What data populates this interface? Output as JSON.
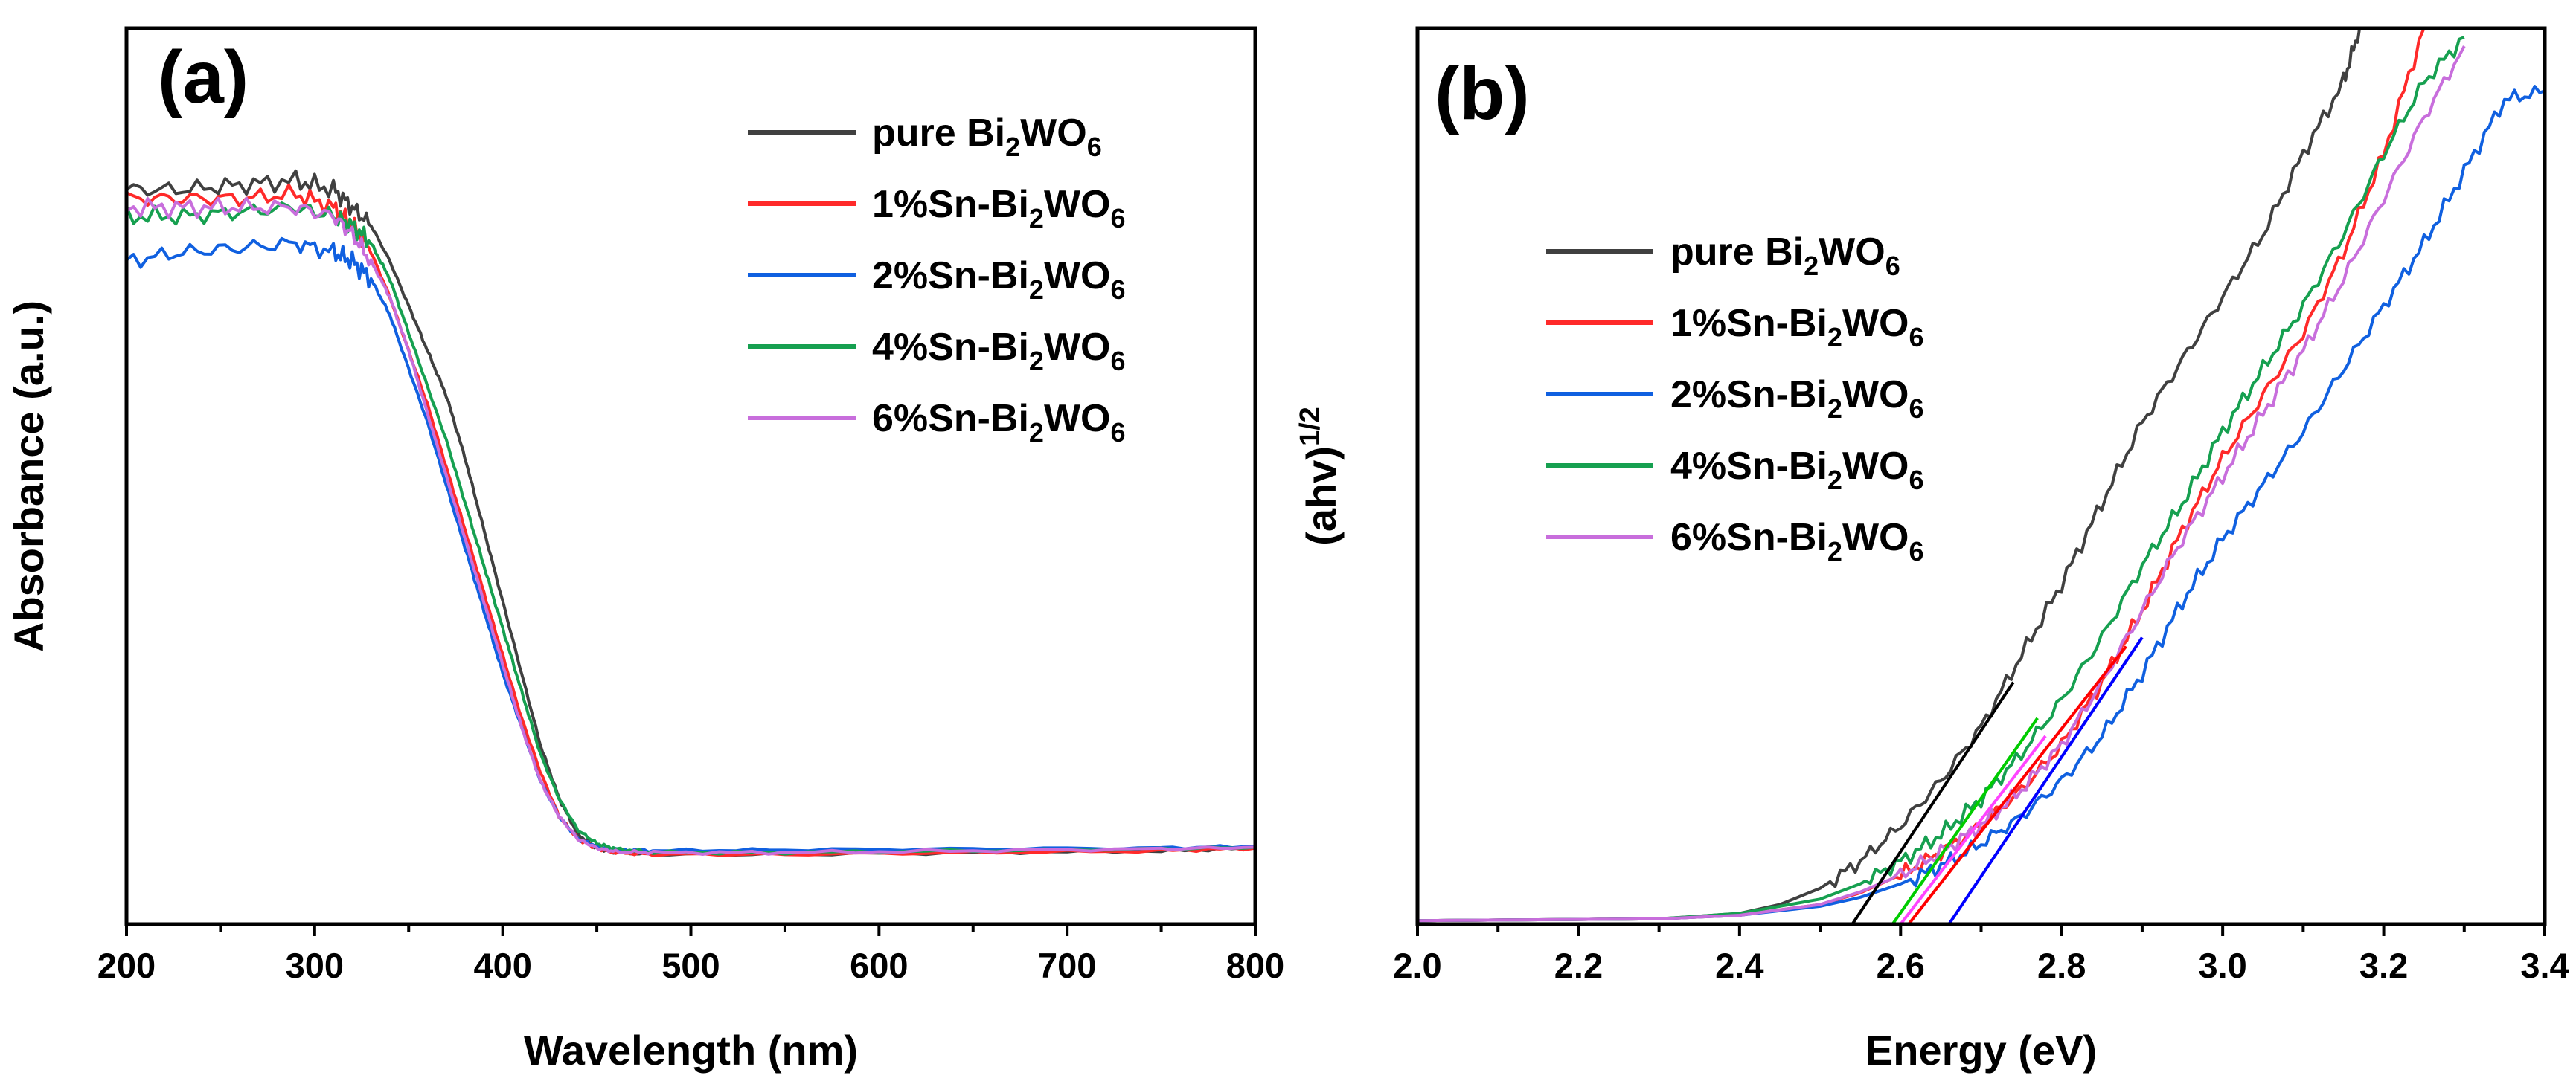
{
  "chart_data": [
    {
      "panel": "(a)",
      "type": "line",
      "xlabel": "Wavelength (nm)",
      "ylabel": "Absorbance (a.u.)",
      "xlim": [
        200,
        800
      ],
      "ylim": [
        0,
        1
      ],
      "xticks": [
        "200",
        "300",
        "400",
        "500",
        "600",
        "700",
        "800"
      ],
      "yticks_visible": false,
      "legend_position": "top-right",
      "series": [
        {
          "name": "pure Bi2WO6",
          "label_parts": [
            "pure Bi",
            "2",
            "WO",
            "6"
          ],
          "color": "#404040",
          "x": [
            200,
            230,
            260,
            290,
            310,
            320,
            330,
            340,
            350,
            360,
            370,
            380,
            390,
            400,
            410,
            420,
            430,
            440,
            450,
            460,
            480,
            550,
            650,
            750,
            800
          ],
          "y": [
            0.82,
            0.82,
            0.825,
            0.83,
            0.82,
            0.8,
            0.78,
            0.74,
            0.69,
            0.64,
            0.59,
            0.52,
            0.44,
            0.36,
            0.28,
            0.2,
            0.14,
            0.1,
            0.085,
            0.08,
            0.078,
            0.078,
            0.08,
            0.082,
            0.085
          ]
        },
        {
          "name": "1%Sn-Bi2WO6",
          "label_parts": [
            "1%Sn-Bi",
            "2",
            "WO",
            "6"
          ],
          "color": "#ff2a2a",
          "x": [
            200,
            230,
            260,
            290,
            310,
            320,
            330,
            340,
            350,
            360,
            370,
            380,
            390,
            400,
            410,
            420,
            430,
            440,
            450,
            460,
            480,
            550,
            650,
            750,
            800
          ],
          "y": [
            0.81,
            0.81,
            0.81,
            0.815,
            0.8,
            0.78,
            0.75,
            0.7,
            0.64,
            0.58,
            0.51,
            0.44,
            0.37,
            0.3,
            0.23,
            0.17,
            0.12,
            0.095,
            0.085,
            0.08,
            0.078,
            0.078,
            0.08,
            0.082,
            0.085
          ]
        },
        {
          "name": "2%Sn-Bi2WO6",
          "label_parts": [
            "2%Sn-Bi",
            "2",
            "WO",
            "6"
          ],
          "color": "#1060e0",
          "x": [
            200,
            230,
            260,
            290,
            310,
            320,
            330,
            340,
            350,
            360,
            370,
            380,
            390,
            400,
            410,
            420,
            430,
            440,
            450,
            460,
            480,
            550,
            650,
            750,
            800
          ],
          "y": [
            0.74,
            0.75,
            0.755,
            0.76,
            0.75,
            0.74,
            0.72,
            0.68,
            0.62,
            0.56,
            0.49,
            0.42,
            0.35,
            0.28,
            0.22,
            0.16,
            0.12,
            0.095,
            0.087,
            0.083,
            0.082,
            0.083,
            0.084,
            0.085,
            0.087
          ]
        },
        {
          "name": "4%Sn-Bi2WO6",
          "label_parts": [
            "4%Sn-Bi",
            "2",
            "WO",
            "6"
          ],
          "color": "#16a050",
          "x": [
            200,
            230,
            260,
            290,
            310,
            320,
            330,
            340,
            350,
            360,
            370,
            380,
            390,
            400,
            410,
            420,
            430,
            440,
            450,
            460,
            480,
            550,
            650,
            750,
            800
          ],
          "y": [
            0.79,
            0.79,
            0.795,
            0.8,
            0.79,
            0.78,
            0.76,
            0.72,
            0.66,
            0.6,
            0.54,
            0.47,
            0.4,
            0.33,
            0.26,
            0.19,
            0.14,
            0.105,
            0.09,
            0.084,
            0.08,
            0.08,
            0.082,
            0.084,
            0.086
          ]
        },
        {
          "name": "6%Sn-Bi2WO6",
          "label_parts": [
            "6%Sn-Bi",
            "2",
            "WO",
            "6"
          ],
          "color": "#c86edc",
          "x": [
            200,
            230,
            260,
            290,
            310,
            320,
            330,
            340,
            350,
            360,
            370,
            380,
            390,
            400,
            410,
            420,
            430,
            440,
            450,
            460,
            480,
            550,
            650,
            750,
            800
          ],
          "y": [
            0.8,
            0.8,
            0.8,
            0.8,
            0.79,
            0.77,
            0.74,
            0.7,
            0.64,
            0.57,
            0.5,
            0.43,
            0.36,
            0.29,
            0.22,
            0.16,
            0.12,
            0.095,
            0.085,
            0.081,
            0.08,
            0.08,
            0.082,
            0.084,
            0.086
          ]
        }
      ]
    },
    {
      "panel": "(b)",
      "type": "line",
      "xlabel": "Energy (eV)",
      "ylabel_base": "(ahv)",
      "ylabel_sup": "1/2",
      "xlim": [
        2.0,
        3.4
      ],
      "ylim": [
        0,
        1
      ],
      "xticks": [
        "2.0",
        "2.2",
        "2.4",
        "2.6",
        "2.8",
        "3.0",
        "3.2",
        "3.4"
      ],
      "yticks_visible": false,
      "legend_position": "center-left",
      "series": [
        {
          "name": "pure Bi2WO6",
          "label_parts": [
            "pure Bi",
            "2",
            "WO",
            "6"
          ],
          "color": "#404040",
          "x": [
            2.0,
            2.3,
            2.4,
            2.45,
            2.5,
            2.55,
            2.6,
            2.65,
            2.7,
            2.75,
            2.8,
            2.85,
            2.9,
            2.95,
            3.0,
            3.05,
            3.1,
            3.15,
            3.17
          ],
          "y": [
            0.004,
            0.006,
            0.012,
            0.022,
            0.04,
            0.07,
            0.11,
            0.16,
            0.22,
            0.3,
            0.38,
            0.47,
            0.56,
            0.63,
            0.7,
            0.77,
            0.86,
            0.94,
            1.0
          ]
        },
        {
          "name": "1%Sn-Bi2WO6",
          "label_parts": [
            "1%Sn-Bi",
            "2",
            "WO",
            "6"
          ],
          "color": "#ff2a2a",
          "x": [
            2.0,
            2.3,
            2.4,
            2.5,
            2.55,
            2.6,
            2.65,
            2.7,
            2.75,
            2.8,
            2.85,
            2.9,
            2.95,
            3.0,
            3.05,
            3.1,
            3.15,
            3.2,
            3.25
          ],
          "y": [
            0.004,
            0.006,
            0.01,
            0.022,
            0.035,
            0.055,
            0.08,
            0.11,
            0.15,
            0.2,
            0.27,
            0.35,
            0.44,
            0.52,
            0.59,
            0.66,
            0.75,
            0.86,
            1.0
          ]
        },
        {
          "name": "2%Sn-Bi2WO6",
          "label_parts": [
            "2%Sn-Bi",
            "2",
            "WO",
            "6"
          ],
          "color": "#1060e0",
          "x": [
            2.0,
            2.3,
            2.4,
            2.5,
            2.55,
            2.6,
            2.65,
            2.7,
            2.75,
            2.8,
            2.85,
            2.9,
            2.95,
            3.0,
            3.05,
            3.1,
            3.15,
            3.2,
            3.25,
            3.3,
            3.35,
            3.4
          ],
          "y": [
            0.004,
            0.006,
            0.01,
            0.02,
            0.03,
            0.045,
            0.065,
            0.09,
            0.12,
            0.16,
            0.21,
            0.28,
            0.36,
            0.43,
            0.49,
            0.55,
            0.62,
            0.69,
            0.76,
            0.84,
            0.92,
            0.93
          ]
        },
        {
          "name": "4%Sn-Bi2WO6",
          "label_parts": [
            "4%Sn-Bi",
            "2",
            "WO",
            "6"
          ],
          "color": "#16a050",
          "x": [
            2.0,
            2.3,
            2.4,
            2.5,
            2.55,
            2.6,
            2.65,
            2.7,
            2.75,
            2.8,
            2.85,
            2.9,
            2.95,
            3.0,
            3.05,
            3.1,
            3.15,
            3.2,
            3.25,
            3.3
          ],
          "y": [
            0.004,
            0.006,
            0.012,
            0.028,
            0.045,
            0.07,
            0.1,
            0.14,
            0.19,
            0.25,
            0.32,
            0.4,
            0.47,
            0.55,
            0.62,
            0.69,
            0.77,
            0.86,
            0.94,
            0.99
          ]
        },
        {
          "name": "6%Sn-Bi2WO6",
          "label_parts": [
            "6%Sn-Bi",
            "2",
            "WO",
            "6"
          ],
          "color": "#c86edc",
          "x": [
            2.0,
            2.3,
            2.4,
            2.5,
            2.55,
            2.6,
            2.65,
            2.7,
            2.75,
            2.8,
            2.85,
            2.9,
            2.95,
            3.0,
            3.05,
            3.1,
            3.15,
            3.2,
            3.25,
            3.3
          ],
          "y": [
            0.004,
            0.006,
            0.01,
            0.022,
            0.036,
            0.055,
            0.08,
            0.11,
            0.15,
            0.2,
            0.27,
            0.35,
            0.43,
            0.5,
            0.57,
            0.64,
            0.72,
            0.81,
            0.9,
            0.98
          ]
        }
      ],
      "tangent_lines": [
        {
          "name": "pure Bi2WO6 fit",
          "color": "#000000",
          "x": [
            2.54,
            2.74
          ],
          "y": [
            0.0,
            0.27
          ]
        },
        {
          "name": "1%Sn-Bi2WO6 fit",
          "color": "#ff0000",
          "x": [
            2.61,
            2.88
          ],
          "y": [
            0.0,
            0.31
          ]
        },
        {
          "name": "2%Sn-Bi2WO6 fit",
          "color": "#0000ff",
          "x": [
            2.66,
            2.9
          ],
          "y": [
            0.0,
            0.32
          ]
        },
        {
          "name": "4%Sn-Bi2WO6 fit",
          "color": "#00cc00",
          "x": [
            2.59,
            2.77
          ],
          "y": [
            0.0,
            0.23
          ]
        },
        {
          "name": "6%Sn-Bi2WO6 fit",
          "color": "#ff44ff",
          "x": [
            2.6,
            2.78
          ],
          "y": [
            0.0,
            0.21
          ]
        }
      ]
    }
  ]
}
